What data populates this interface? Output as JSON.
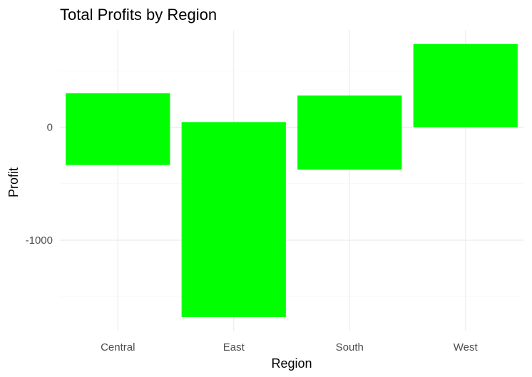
{
  "chart_data": {
    "type": "waterfall",
    "title": "Total Profits by Region",
    "xlabel": "Region",
    "ylabel": "Profit",
    "categories": [
      "Central",
      "East",
      "South",
      "West"
    ],
    "segments": [
      {
        "category": "Central",
        "start": -335,
        "end": 300
      },
      {
        "category": "East",
        "start": 45,
        "end": -1680
      },
      {
        "category": "South",
        "start": 280,
        "end": -375
      },
      {
        "category": "West",
        "start": 0,
        "end": 735
      }
    ],
    "ylim": [
      -1800,
      860
    ],
    "yticks": [
      0,
      -1000
    ],
    "ytick_labels": [
      "0",
      "-1000"
    ],
    "bar_color": "#00ff00",
    "grid": true,
    "legend": "none"
  }
}
